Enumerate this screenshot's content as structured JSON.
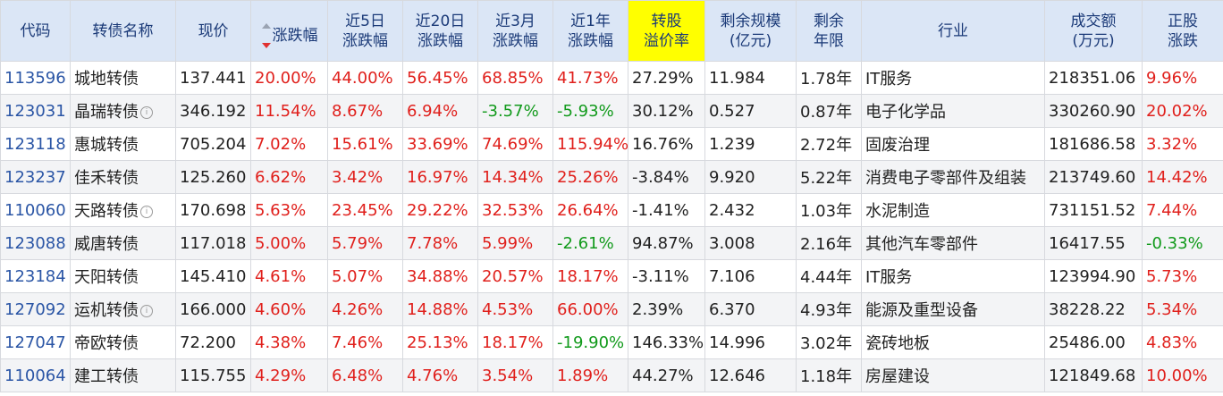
{
  "colors": {
    "up": "#e0201c",
    "down": "#119a1b",
    "code_link": "#2a55a5",
    "header_bg": "#dbe6f6",
    "header_highlight": "#ffff00"
  },
  "headers": {
    "code": "代码",
    "name": "转债名称",
    "price": "现价",
    "change": "涨跌幅",
    "chg5d": [
      "近5日",
      "涨跌幅"
    ],
    "chg20d": [
      "近20日",
      "涨跌幅"
    ],
    "chg3m": [
      "近3月",
      "涨跌幅"
    ],
    "chg1y": [
      "近1年",
      "涨跌幅"
    ],
    "premium": [
      "转股",
      "溢价率"
    ],
    "scale": [
      "剩余规模",
      "(亿元)"
    ],
    "years": [
      "剩余",
      "年限"
    ],
    "industry": "行业",
    "volume": [
      "成交额",
      "(万元)"
    ],
    "stock_chg": [
      "正股",
      "涨跌"
    ]
  },
  "rows": [
    {
      "code": "113596",
      "name": "城地转债",
      "info": false,
      "price": "137.441",
      "change": "20.00%",
      "chg5d": "44.00%",
      "chg20d": "56.45%",
      "chg3m": "68.85%",
      "chg1y": "41.73%",
      "premium": "27.29%",
      "scale": "11.984",
      "years": "1.78年",
      "industry": "IT服务",
      "volume": "218351.06",
      "stock_chg": "9.96%"
    },
    {
      "code": "123031",
      "name": "晶瑞转债",
      "info": true,
      "price": "346.192",
      "change": "11.54%",
      "chg5d": "8.67%",
      "chg20d": "6.94%",
      "chg3m": "-3.57%",
      "chg1y": "-5.93%",
      "premium": "30.12%",
      "scale": "0.527",
      "years": "0.87年",
      "industry": "电子化学品",
      "volume": "330260.90",
      "stock_chg": "20.02%"
    },
    {
      "code": "123118",
      "name": "惠城转债",
      "info": false,
      "price": "705.204",
      "change": "7.02%",
      "chg5d": "15.61%",
      "chg20d": "33.69%",
      "chg3m": "74.69%",
      "chg1y": "115.94%",
      "premium": "16.76%",
      "scale": "1.239",
      "years": "2.72年",
      "industry": "固废治理",
      "volume": "181686.58",
      "stock_chg": "3.32%"
    },
    {
      "code": "123237",
      "name": "佳禾转债",
      "info": false,
      "price": "125.260",
      "change": "6.62%",
      "chg5d": "3.42%",
      "chg20d": "16.97%",
      "chg3m": "14.34%",
      "chg1y": "25.26%",
      "premium": "-3.84%",
      "scale": "9.920",
      "years": "5.22年",
      "industry": "消费电子零部件及组装",
      "volume": "213749.60",
      "stock_chg": "14.42%"
    },
    {
      "code": "110060",
      "name": "天路转债",
      "info": true,
      "price": "170.698",
      "change": "5.63%",
      "chg5d": "23.45%",
      "chg20d": "29.22%",
      "chg3m": "32.53%",
      "chg1y": "26.64%",
      "premium": "-1.41%",
      "scale": "2.432",
      "years": "1.03年",
      "industry": "水泥制造",
      "volume": "731151.52",
      "stock_chg": "7.44%"
    },
    {
      "code": "123088",
      "name": "威唐转债",
      "info": false,
      "price": "117.018",
      "change": "5.00%",
      "chg5d": "5.79%",
      "chg20d": "7.78%",
      "chg3m": "5.99%",
      "chg1y": "-2.61%",
      "premium": "94.87%",
      "scale": "3.008",
      "years": "2.16年",
      "industry": "其他汽车零部件",
      "volume": "16417.55",
      "stock_chg": "-0.33%"
    },
    {
      "code": "123184",
      "name": "天阳转债",
      "info": false,
      "price": "145.410",
      "change": "4.61%",
      "chg5d": "5.07%",
      "chg20d": "34.88%",
      "chg3m": "20.57%",
      "chg1y": "18.17%",
      "premium": "-3.11%",
      "scale": "7.106",
      "years": "4.44年",
      "industry": "IT服务",
      "volume": "123994.90",
      "stock_chg": "5.73%"
    },
    {
      "code": "127092",
      "name": "运机转债",
      "info": true,
      "price": "166.000",
      "change": "4.60%",
      "chg5d": "4.26%",
      "chg20d": "14.88%",
      "chg3m": "4.53%",
      "chg1y": "66.00%",
      "premium": "2.39%",
      "scale": "6.370",
      "years": "4.93年",
      "industry": "能源及重型设备",
      "volume": "38228.22",
      "stock_chg": "5.34%"
    },
    {
      "code": "127047",
      "name": "帝欧转债",
      "info": false,
      "price": "72.200",
      "change": "4.38%",
      "chg5d": "7.46%",
      "chg20d": "25.13%",
      "chg3m": "18.17%",
      "chg1y": "-19.90%",
      "premium": "146.33%",
      "scale": "14.996",
      "years": "3.02年",
      "industry": "瓷砖地板",
      "volume": "25486.00",
      "stock_chg": "4.83%"
    },
    {
      "code": "110064",
      "name": "建工转债",
      "info": false,
      "price": "115.755",
      "change": "4.29%",
      "chg5d": "6.48%",
      "chg20d": "4.76%",
      "chg3m": "3.54%",
      "chg1y": "1.89%",
      "premium": "44.27%",
      "scale": "12.646",
      "years": "1.18年",
      "industry": "房屋建设",
      "volume": "121849.68",
      "stock_chg": "10.00%"
    }
  ]
}
